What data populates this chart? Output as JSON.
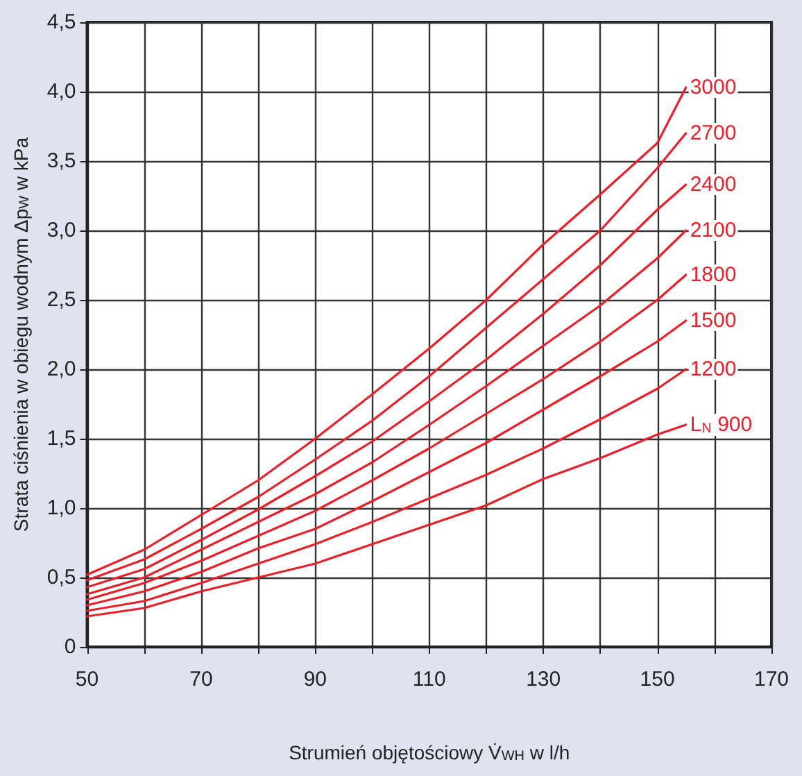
{
  "chart_data": {
    "type": "line",
    "xlabel": "Strumień objętościowy V̇$_{WH}$ w l/h",
    "ylabel": "Strata ciśnienia w obiegu wodnym Δp$_{W}$ w kPa",
    "x": [
      50,
      60,
      70,
      80,
      90,
      100,
      110,
      120,
      130,
      140,
      150,
      155
    ],
    "series": [
      {
        "name": "L$_{N}$ 900",
        "color": "#e8202a",
        "values": [
          0.22,
          0.28,
          0.4,
          0.5,
          0.6,
          0.74,
          0.88,
          1.02,
          1.21,
          1.36,
          1.53,
          1.6
        ]
      },
      {
        "name": "1200",
        "color": "#e8202a",
        "values": [
          0.26,
          0.33,
          0.46,
          0.6,
          0.74,
          0.9,
          1.07,
          1.24,
          1.43,
          1.64,
          1.86,
          2.0
        ]
      },
      {
        "name": "1500",
        "color": "#e8202a",
        "values": [
          0.3,
          0.4,
          0.54,
          0.71,
          0.85,
          1.05,
          1.26,
          1.47,
          1.71,
          1.95,
          2.2,
          2.35
        ]
      },
      {
        "name": "1800",
        "color": "#e8202a",
        "values": [
          0.34,
          0.46,
          0.62,
          0.8,
          0.98,
          1.2,
          1.43,
          1.68,
          1.93,
          2.2,
          2.5,
          2.68
        ]
      },
      {
        "name": "2100",
        "color": "#e8202a",
        "values": [
          0.38,
          0.5,
          0.7,
          0.9,
          1.1,
          1.33,
          1.6,
          1.88,
          2.17,
          2.46,
          2.8,
          3.0
        ]
      },
      {
        "name": "2400",
        "color": "#e8202a",
        "values": [
          0.43,
          0.56,
          0.77,
          0.99,
          1.23,
          1.48,
          1.77,
          2.07,
          2.4,
          2.75,
          3.15,
          3.33
        ]
      },
      {
        "name": "2700",
        "color": "#e8202a",
        "values": [
          0.48,
          0.63,
          0.85,
          1.08,
          1.35,
          1.63,
          1.95,
          2.3,
          2.65,
          3.0,
          3.45,
          3.7
        ]
      },
      {
        "name": "3000",
        "color": "#e8202a",
        "values": [
          0.52,
          0.7,
          0.95,
          1.2,
          1.5,
          1.82,
          2.15,
          2.5,
          2.9,
          3.26,
          3.63,
          4.03
        ]
      }
    ],
    "xlim": [
      50,
      170
    ],
    "xticks": [
      50,
      {
        "value": 60,
        "label": null
      },
      70,
      {
        "value": 80,
        "label": null
      },
      90,
      {
        "value": 100,
        "label": null
      },
      110,
      {
        "value": 120,
        "label": null
      },
      130,
      {
        "value": 140,
        "label": null
      },
      150,
      {
        "value": 160,
        "label": null
      },
      170
    ],
    "ylim": [
      0,
      4.5
    ],
    "yticks": [
      0,
      {
        "value": 0.5,
        "label": "0,5"
      },
      {
        "value": 1,
        "label": "1,0"
      },
      {
        "value": 1.5,
        "label": "1,5"
      },
      {
        "value": 2,
        "label": "2,0"
      },
      {
        "value": 2.5,
        "label": "2,5"
      },
      {
        "value": 3,
        "label": "3,0"
      },
      {
        "value": 3.5,
        "label": "3,5"
      },
      {
        "value": 4,
        "label": "4,0"
      },
      {
        "value": 4.5,
        "label": "4,5"
      }
    ],
    "grid": true,
    "legend": false,
    "marker": "none",
    "line_style": "solid"
  }
}
